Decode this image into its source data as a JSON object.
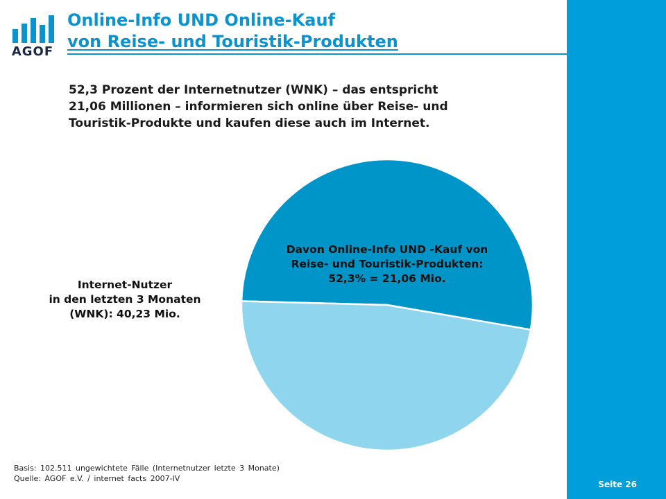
{
  "header": {
    "title_line1": "Online-Info UND Online-Kauf",
    "title_line2": "von Reise- und Touristik-Produkten",
    "logo_text": "AGOF"
  },
  "intro": {
    "line1": "52,3 Prozent der Internetnutzer (WNK) – das entspricht",
    "line2": "21,06 Millionen – informieren sich online über Reise- und",
    "line3": "Touristik-Produkte und kaufen diese auch im Internet."
  },
  "chart_data": {
    "type": "pie",
    "slices": [
      {
        "value": 52.3,
        "color": "#0095c8",
        "label_lines": [
          "Davon Online-Info UND -Kauf von",
          "Reise- und Touristik-Produkten:",
          "52,3% = 21,06 Mio."
        ]
      },
      {
        "value": 47.7,
        "color": "#8fd5ee",
        "label_lines": [
          "Internet-Nutzer",
          "in den letzten 3 Monaten",
          "(WNK): 40,23 Mio."
        ]
      }
    ]
  },
  "footer": {
    "basis": "Basis: 102.511 ungewichtete Fälle (Internetnutzer letzte 3 Monate)",
    "source": "Quelle: AGOF e.V. / internet facts 2007-IV",
    "page": "Seite 26"
  },
  "colors": {
    "accent": "#0a93cf",
    "band": "#009fdb"
  }
}
